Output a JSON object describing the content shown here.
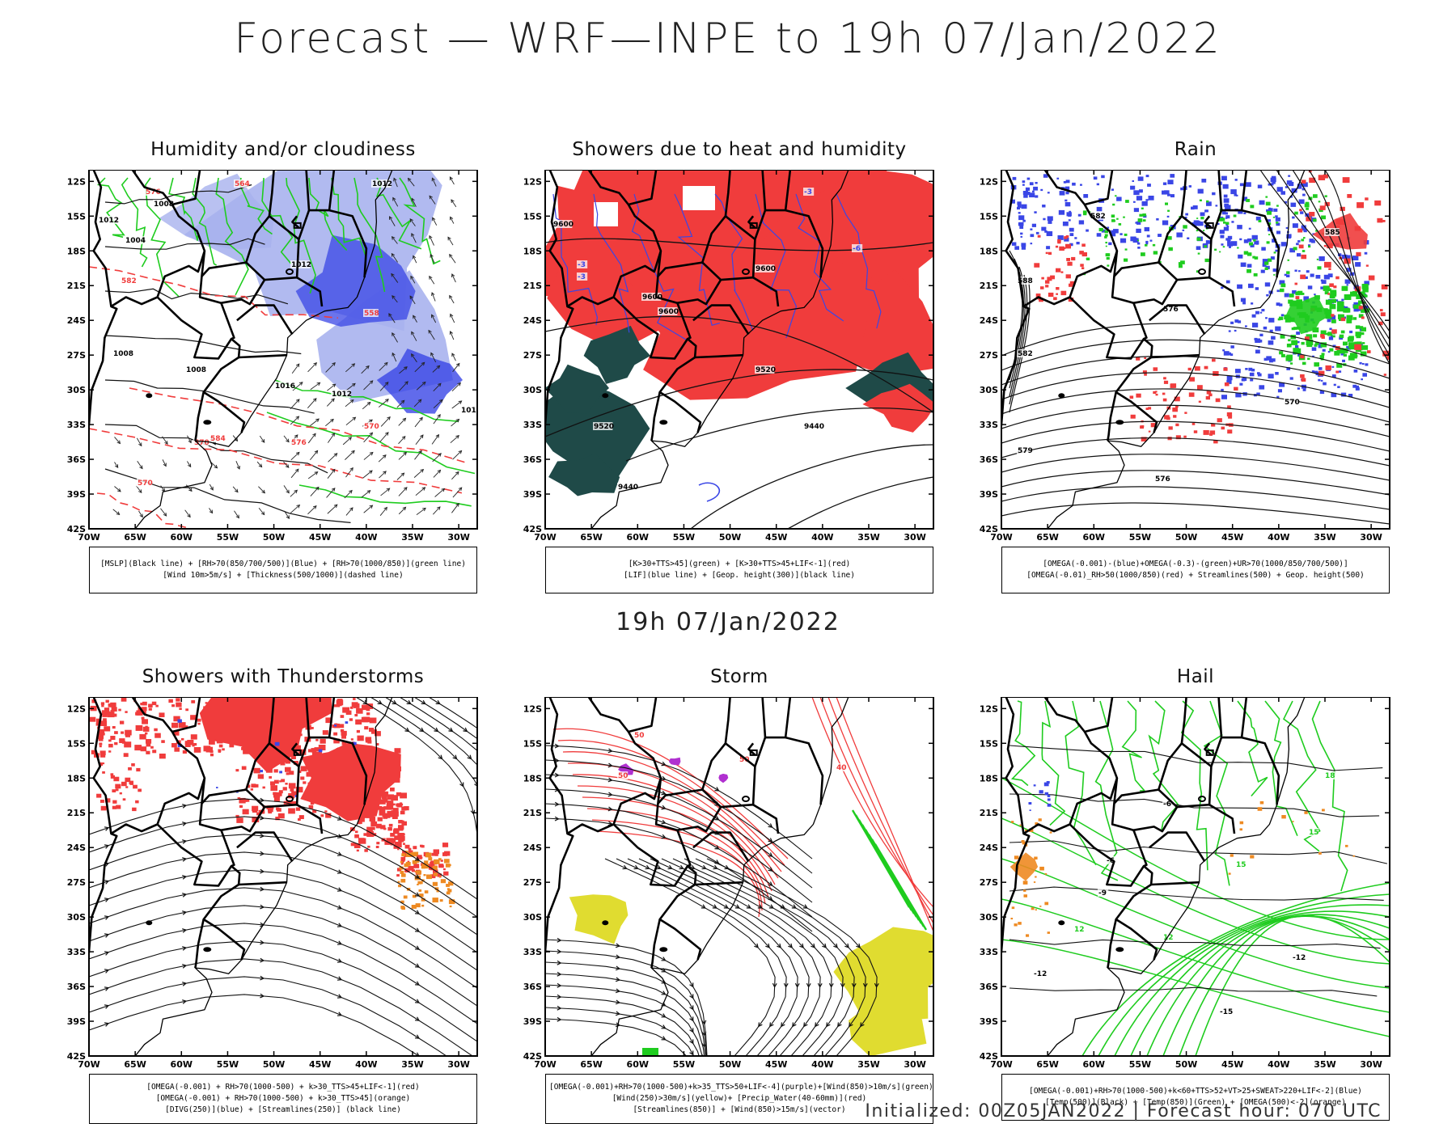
{
  "title": "Forecast — WRF—INPE to 19h 07/Jan/2022",
  "mid_title": "19h 07/Jan/2022",
  "footer": "Initialized: 00Z05JAN2022 | Forecast hour: 070 UTC",
  "axes": {
    "lat_labels": [
      "12S",
      "15S",
      "18S",
      "21S",
      "24S",
      "27S",
      "30S",
      "33S",
      "36S",
      "39S",
      "42S"
    ],
    "lon_labels": [
      "70W",
      "65W",
      "60W",
      "55W",
      "50W",
      "45W",
      "40W",
      "35W",
      "30W"
    ]
  },
  "colors": {
    "green": "#1fcc1f",
    "blue": "#3a46e6",
    "lightblue": "#a8b2ee",
    "red": "#f03c3c",
    "darkteal": "#1f4a48",
    "orange": "#ee8a22",
    "purple": "#b030d0",
    "yellow": "#e0dc30"
  },
  "panels": [
    {
      "title": "Humidity and/or cloudiness",
      "legend": [
        "[MSLP](Black line) + [RH>70(850/700/500)](Blue) + [RH>70(1000/850)](green line)",
        "[Wind 10m>5m/s] + [Thickness(500/1000)](dashed line)"
      ],
      "labels": [
        "1012",
        "1008",
        "1004",
        "1008",
        "1012",
        "1016",
        "1012",
        "1008",
        "1012",
        "1012",
        "576",
        "570",
        "582",
        "570",
        "564",
        "558",
        "570",
        "576",
        "584"
      ]
    },
    {
      "title": "Showers due to heat and humidity",
      "legend": [
        "[K>30+TTS>45](green) + [K>30+TTS>45+LIF<-1](red)",
        "[LIF](blue line) + [Geop. height(300)](black line)"
      ],
      "labels": [
        "9600",
        "9600",
        "9600",
        "9600",
        "9520",
        "9520",
        "9440",
        "9440",
        "-3",
        "-3",
        "-3",
        "-6"
      ]
    },
    {
      "title": "Rain",
      "legend": [
        "[OMEGA(-0.001)-(blue)+OMEGA(-0.3)-(green)+UR>70(1000/850/700/500)]",
        "[OMEGA(-0.01)_RH>50(1000/850)(red) + Streamlines(500) + Geop. height(500)"
      ],
      "labels": [
        "582",
        "585",
        "588",
        "582",
        "576",
        "570",
        "579",
        "576"
      ]
    },
    {
      "title": "Showers with Thunderstorms",
      "legend": [
        "[OMEGA(-0.001) + RH>70(1000-500) + k>30_TTS>45+LIF<-1](red)",
        "[OMEGA(-0.001) + RH>70(1000-500) + k>30_TTS>45](orange)",
        "[DIVG(250)](blue) + [Streamlines(250)] (black line)"
      ],
      "labels": []
    },
    {
      "title": "Storm",
      "legend": [
        "[OMEGA(-0.001)+RH>70(1000-500)+k>35_TTS>50+LIF<-4](purple)+[Wind(850)>10m/s](green)",
        "[Wind(250)>30m/s](yellow)+ [Precip_Water(40-60mm)](red)",
        "[Streamlines(850)] + [Wind(850)>15m/s](vector)"
      ],
      "labels": [
        "50",
        "50",
        "50",
        "40"
      ]
    },
    {
      "title": "Hail",
      "legend": [
        "[OMEGA(-0.001)+RH>70(1000-500)+k<60+TTS>52+VT>25+SWEAT>220+LIF<-2](Blue)",
        "[Temp(500)](Black) + [Temp(850)](Green) + [OMEGA(500)<-2](orange)"
      ],
      "labels": [
        "-6",
        "-6",
        "-9",
        "-12",
        "-12",
        "-15",
        "12",
        "15",
        "15",
        "12",
        "18"
      ]
    }
  ]
}
